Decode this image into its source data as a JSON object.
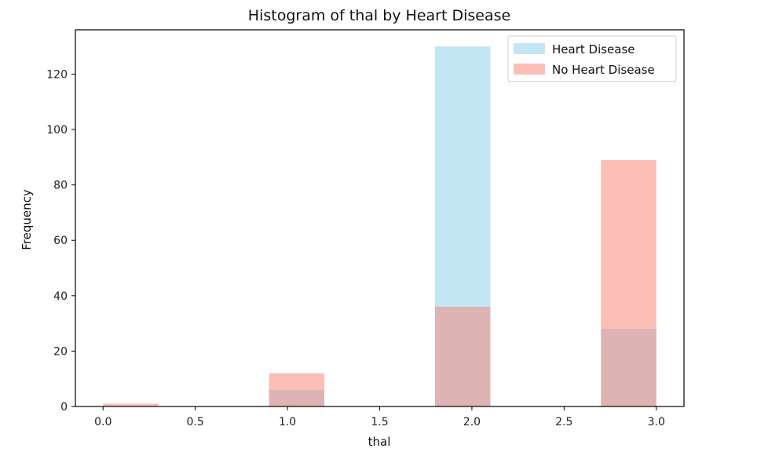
{
  "chart_data": {
    "type": "bar",
    "title": "Histogram of thal by Heart Disease",
    "xlabel": "thal",
    "ylabel": "Frequency",
    "xlim": [
      -0.15,
      3.15
    ],
    "ylim": [
      0,
      136
    ],
    "xticks": [
      "0.0",
      "0.5",
      "1.0",
      "1.5",
      "2.0",
      "2.5",
      "3.0"
    ],
    "yticks": [
      "0",
      "20",
      "40",
      "60",
      "80",
      "100",
      "120"
    ],
    "grid": false,
    "legend_position": "top-right",
    "series": [
      {
        "name": "Heart Disease",
        "color": "#87ceeb",
        "opacity": 0.5,
        "bins": [
          {
            "x0": 0.0,
            "x1": 0.3,
            "value": 0
          },
          {
            "x0": 0.9,
            "x1": 1.2,
            "value": 6
          },
          {
            "x0": 1.8,
            "x1": 2.1,
            "value": 130
          },
          {
            "x0": 2.7,
            "x1": 3.0,
            "value": 28
          }
        ]
      },
      {
        "name": "No Heart Disease",
        "color": "#fa8072",
        "opacity": 0.5,
        "bins": [
          {
            "x0": 0.0,
            "x1": 0.3,
            "value": 1
          },
          {
            "x0": 0.9,
            "x1": 1.2,
            "value": 12
          },
          {
            "x0": 1.8,
            "x1": 2.1,
            "value": 36
          },
          {
            "x0": 2.7,
            "x1": 3.0,
            "value": 89
          }
        ]
      }
    ]
  }
}
